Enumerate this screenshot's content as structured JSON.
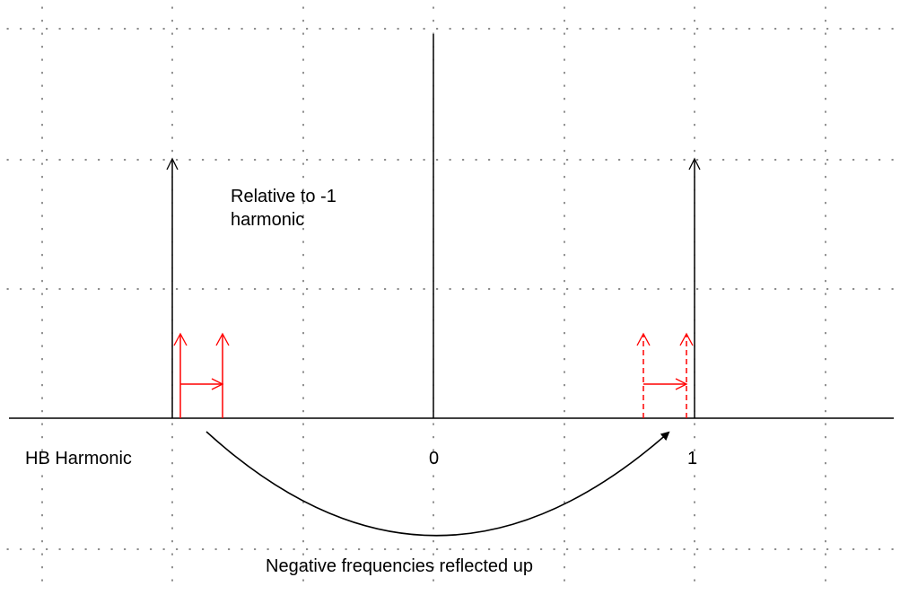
{
  "diagram": {
    "annotation": [
      "Relative to -1",
      "harmonic"
    ],
    "axis_caption": "HB Harmonic",
    "tick_zero": "0",
    "tick_one": "1",
    "footer_caption": "Negative frequencies reflected up",
    "colors": {
      "ink": "#000000",
      "red": "#ff0000",
      "grid": "#444444"
    }
  }
}
